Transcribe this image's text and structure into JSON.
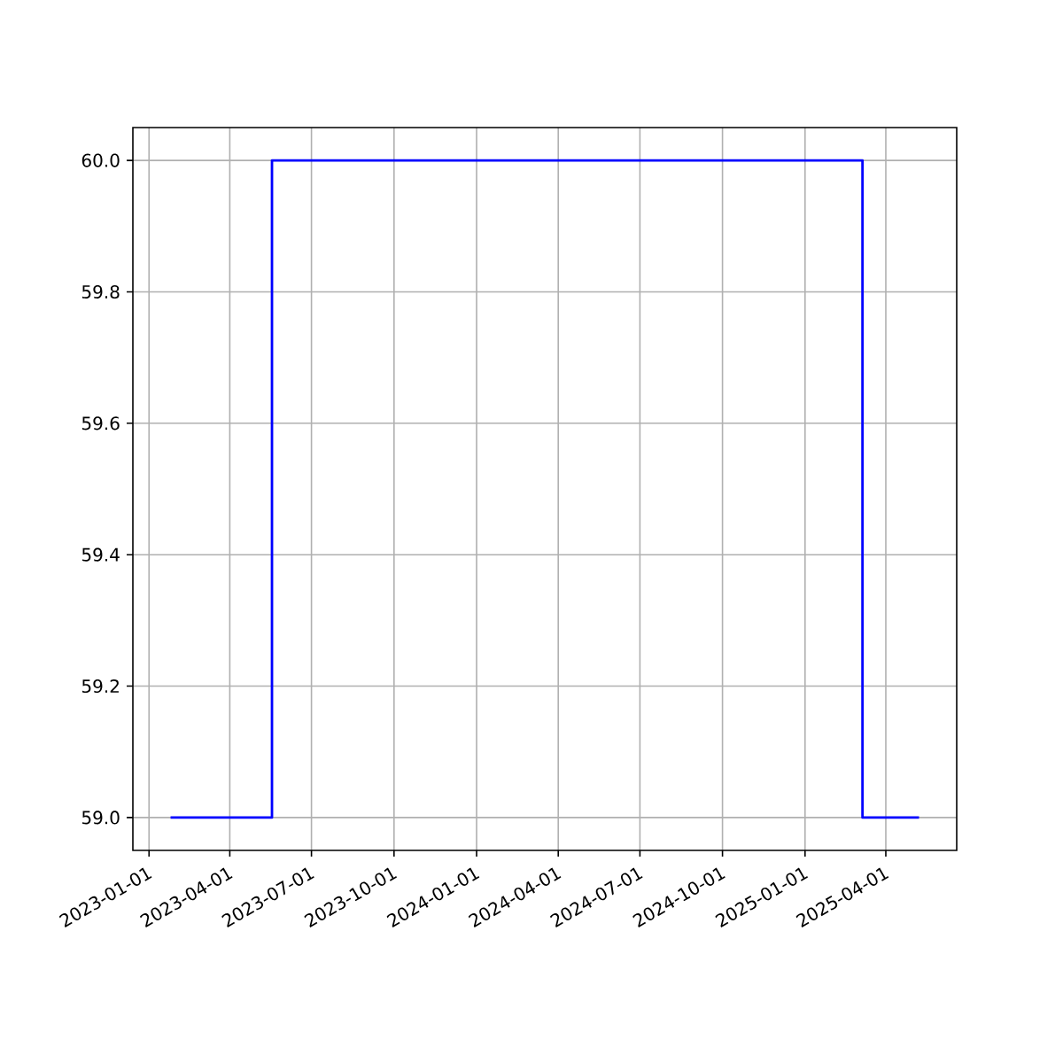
{
  "chart_data": {
    "type": "step",
    "x": [
      "2023-01-25",
      "2023-05-18",
      "2025-03-06",
      "2025-05-08"
    ],
    "series": [
      {
        "color": "#0000ff",
        "values": [
          59,
          60,
          59,
          59
        ]
      }
    ],
    "xlim": [
      "2022-12-14",
      "2025-06-19"
    ],
    "xticks": [
      "2023-01-01",
      "2023-04-01",
      "2023-07-01",
      "2023-10-01",
      "2024-01-01",
      "2024-04-01",
      "2024-07-01",
      "2024-10-01",
      "2025-01-01",
      "2025-04-01"
    ],
    "ylim": [
      58.95,
      60.05
    ],
    "yticks": [
      {
        "value": 59,
        "label": "59.0"
      },
      {
        "value": 59.2,
        "label": "59.2"
      },
      {
        "value": 59.4,
        "label": "59.4"
      },
      {
        "value": 59.6,
        "label": "59.6"
      },
      {
        "value": 59.8,
        "label": "59.8"
      },
      {
        "value": 60,
        "label": "60.0"
      }
    ],
    "grid": true
  }
}
